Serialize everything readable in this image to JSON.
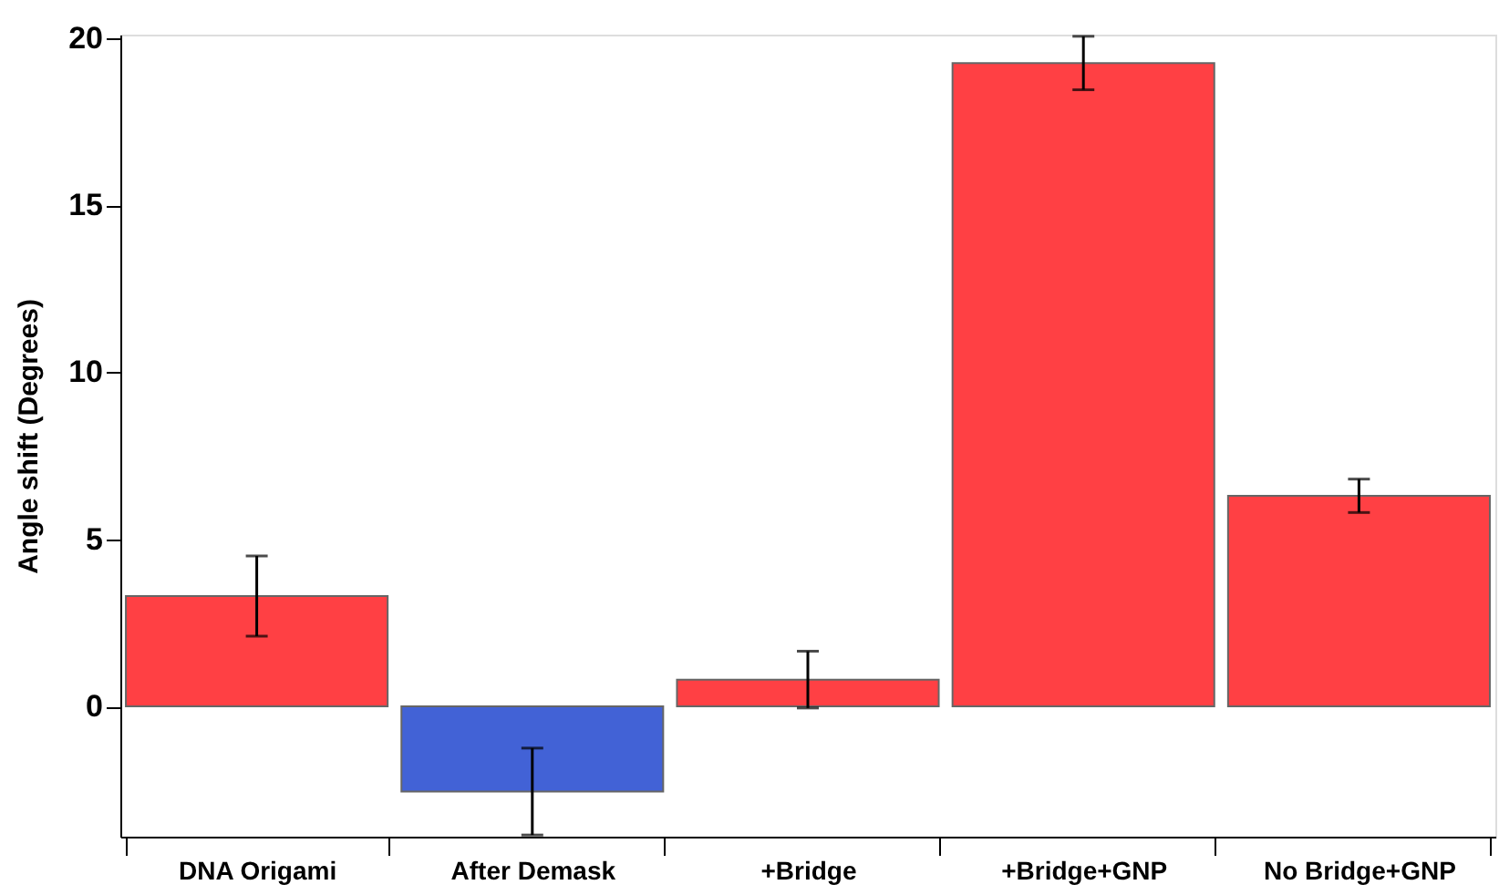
{
  "chart_data": {
    "type": "bar",
    "ylabel": "Angle shift (Degrees)",
    "categories": [
      "DNA Origami",
      "After Demask",
      "+Bridge",
      "+Bridge+GNP",
      "No Bridge+GNP"
    ],
    "values": [
      3.3,
      -2.55,
      0.8,
      19.25,
      6.3
    ],
    "errors": [
      1.2,
      1.3,
      0.85,
      0.8,
      0.5
    ],
    "colors": [
      "#ff4044",
      "#4262d6",
      "#ff4044",
      "#ff4044",
      "#ff4044"
    ],
    "ylim": [
      -3.9,
      20.1
    ],
    "yticks": [
      0,
      5,
      10,
      15,
      20
    ],
    "grid": false,
    "legend": false
  }
}
